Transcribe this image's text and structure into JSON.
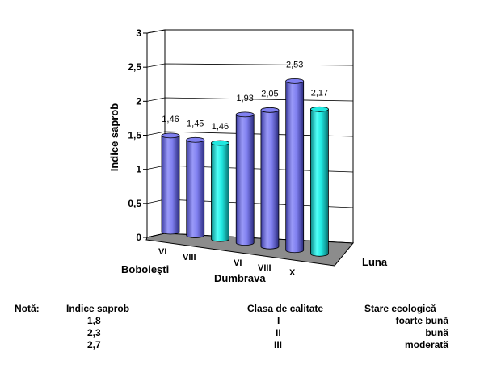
{
  "chart_data": {
    "type": "bar",
    "style": "3d-cylinder",
    "ylabel": "Indice saprob",
    "xlabel": "Luna",
    "ylim": [
      0,
      3
    ],
    "yticks": [
      "0",
      "0,5",
      "1",
      "1,5",
      "2",
      "2,5",
      "3"
    ],
    "grid": true,
    "legend": "none",
    "groups": [
      {
        "name": "Boboieşti",
        "months": [
          "VI",
          "VIII"
        ],
        "values": [
          1.46,
          1.45
        ],
        "labels": [
          "1,46",
          "1,45"
        ]
      },
      {
        "name": "Dumbrava",
        "months": [
          "VI",
          "VIII",
          "X"
        ],
        "values": [
          1.93,
          2.05,
          2.53
        ],
        "labels": [
          "1,93",
          "2,05",
          "2,53"
        ]
      }
    ],
    "extra_bars": [
      {
        "after_group": 0,
        "value": 1.46,
        "label": "1,46"
      },
      {
        "after_group": 1,
        "value": 2.17,
        "label": "2,17"
      }
    ],
    "bar_sequence": [
      {
        "value": 1.46,
        "label": "1,46",
        "color": "#8080f0"
      },
      {
        "value": 1.45,
        "label": "1,45",
        "color": "#8080f0"
      },
      {
        "value": 1.46,
        "label": "1,46",
        "color": "#20e8e0"
      },
      {
        "value": 1.93,
        "label": "1,93",
        "color": "#8080f0"
      },
      {
        "value": 2.05,
        "label": "2,05",
        "color": "#8080f0"
      },
      {
        "value": 2.53,
        "label": "2,53",
        "color": "#8080f0"
      },
      {
        "value": 2.17,
        "label": "2,17",
        "color": "#20e8e0"
      }
    ],
    "colors": {
      "series": "#8080f0",
      "reference": "#20e8e0",
      "floor": "#8c8c8c"
    }
  },
  "notes": {
    "title": "Notă:",
    "headers": [
      "Indice saprob",
      "Clasa de calitate",
      "Stare ecologică"
    ],
    "rows": [
      [
        "1,8",
        "I",
        "foarte bună"
      ],
      [
        "2,3",
        "II",
        "bună"
      ],
      [
        "2,7",
        "III",
        "moderată"
      ]
    ]
  }
}
